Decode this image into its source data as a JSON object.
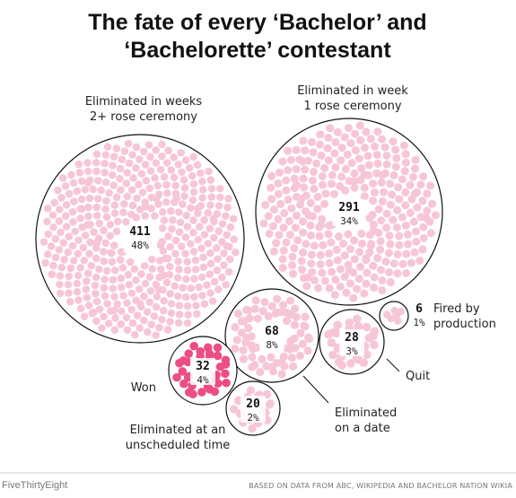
{
  "chart_data": {
    "type": "bubble",
    "title": [
      "The fate of every ‘Bachelor’ and",
      "‘Bachelorette’ contestant"
    ],
    "groups": [
      {
        "id": "weeks2",
        "count": 411,
        "pct": "48%",
        "label": [
          "Eliminated in weeks",
          "2+ rose ceremony"
        ],
        "color": "#f7c6d5"
      },
      {
        "id": "week1",
        "count": 291,
        "pct": "34%",
        "label": [
          "Eliminated in week",
          "1 rose ceremony"
        ],
        "color": "#f7c6d5"
      },
      {
        "id": "date",
        "count": 68,
        "pct": "8%",
        "label": [
          "Eliminated",
          "on a date"
        ],
        "color": "#f7c6d5"
      },
      {
        "id": "won",
        "count": 32,
        "pct": "4%",
        "label": [
          "Won"
        ],
        "color": "#ec4e83"
      },
      {
        "id": "quit",
        "count": 28,
        "pct": "3%",
        "label": [
          "Quit"
        ],
        "color": "#f7c6d5"
      },
      {
        "id": "unscheduled",
        "count": 20,
        "pct": "2%",
        "label": [
          "Eliminated at an",
          "unscheduled time"
        ],
        "color": "#f7c6d5"
      },
      {
        "id": "fired",
        "count": 6,
        "pct": "1%",
        "label": [
          "Fired by",
          "production"
        ],
        "color": "#f7c6d5"
      }
    ]
  },
  "footer": {
    "brand": "FiveThirtyEight",
    "source": "BASED ON DATA FROM ABC, WIKIPEDIA AND BACHELOR NATION WIKIA"
  }
}
